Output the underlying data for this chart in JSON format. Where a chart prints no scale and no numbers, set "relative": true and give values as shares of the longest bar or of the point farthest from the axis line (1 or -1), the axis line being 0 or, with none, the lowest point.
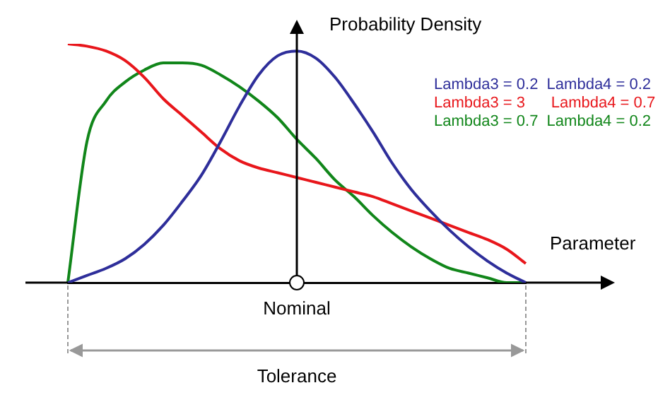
{
  "chart_data": {
    "type": "line",
    "relative": true,
    "xlabel": "Parameter",
    "ylabel": "Probability Density",
    "legend": "top right",
    "marker": "none",
    "grid": false,
    "tick_labels": false,
    "categories": [
      null,
      null,
      null,
      null,
      null,
      null,
      null,
      null,
      null,
      null,
      null,
      null,
      null,
      null,
      null,
      null,
      null,
      null,
      null,
      null,
      null,
      null,
      null,
      null,
      null
    ],
    "series": [
      {
        "name": "Lambda3 = 0.2  Lambda4 = 0.2",
        "color": "#2e2e9a",
        "values": [
          0,
          0.03,
          0.06,
          0.1,
          0.16,
          0.24,
          0.34,
          0.45,
          0.59,
          0.74,
          0.87,
          0.95,
          0.97,
          0.94,
          0.86,
          0.75,
          0.63,
          0.5,
          0.39,
          0.3,
          0.22,
          0.15,
          0.09,
          0.04,
          0
        ]
      },
      {
        "name": "Lambda3 = 3      Lambda4 = 0.7",
        "color": "#e8161b",
        "values": [
          1,
          0.99,
          0.97,
          0.93,
          0.86,
          0.77,
          0.7,
          0.63,
          0.56,
          0.51,
          0.48,
          0.46,
          0.44,
          0.42,
          0.4,
          0.38,
          0.36,
          0.33,
          0.3,
          0.27,
          0.24,
          0.21,
          0.18,
          0.14,
          0.08
        ]
      },
      {
        "name": "Lambda3 = 0.7  Lambda4 = 0.2",
        "color": "#11861a",
        "values": [
          0,
          0.59,
          0.76,
          0.84,
          0.89,
          0.92,
          0.92,
          0.91,
          0.87,
          0.82,
          0.76,
          0.69,
          0.6,
          0.52,
          0.43,
          0.36,
          0.28,
          0.21,
          0.15,
          0.1,
          0.06,
          0.04,
          0.02,
          0,
          0
        ]
      }
    ],
    "annotations": [
      "Nominal",
      "Tolerance"
    ]
  }
}
